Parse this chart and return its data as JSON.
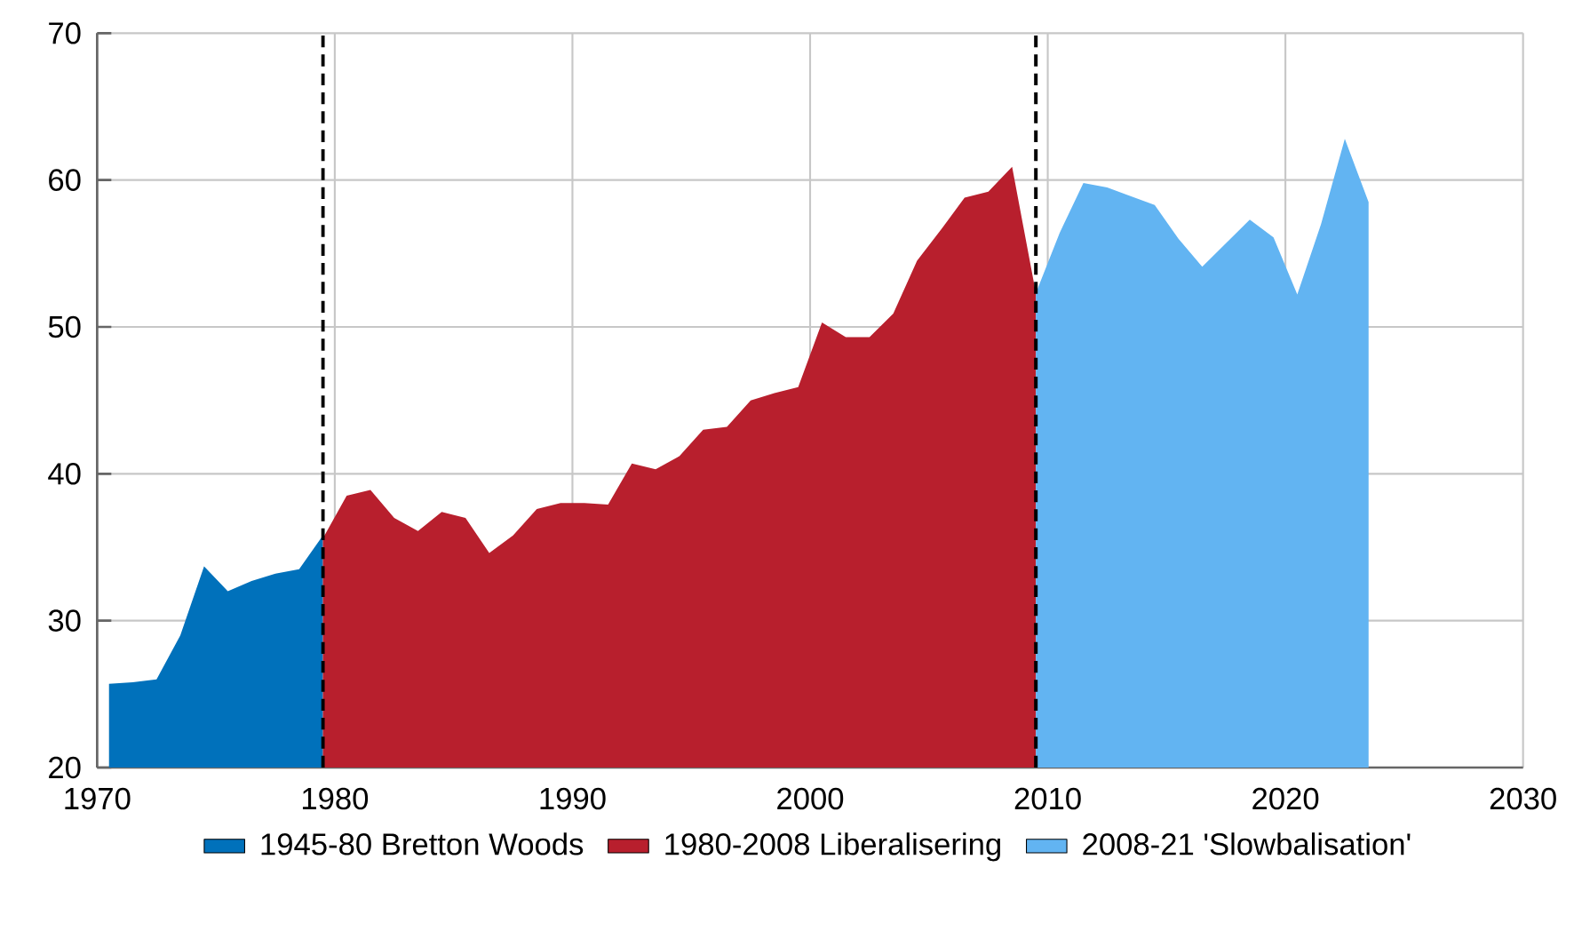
{
  "chart_data": {
    "type": "area",
    "xlim": [
      1970,
      2030
    ],
    "ylim": [
      20,
      70
    ],
    "xticks": [
      1970,
      1980,
      1990,
      2000,
      2010,
      2020,
      2030
    ],
    "yticks": [
      20,
      30,
      40,
      50,
      60,
      70
    ],
    "grid": true,
    "legend": "bottom",
    "series": [
      {
        "name": "1945-80 Bretton Woods",
        "color": "#0071bb",
        "x": [
          1970.5,
          1971.5,
          1972.5,
          1973.5,
          1974.5,
          1975.5,
          1976.5,
          1977.5,
          1978.5,
          1979.5
        ],
        "values": [
          25.7,
          25.8,
          26.0,
          29.0,
          33.7,
          32.0,
          32.7,
          33.2,
          33.5,
          35.8
        ]
      },
      {
        "name": "1980-2008 Liberalisering",
        "color": "#b81f2d",
        "x": [
          1979.5,
          1980.5,
          1981.5,
          1982.5,
          1983.5,
          1984.5,
          1985.5,
          1986.5,
          1987.5,
          1988.5,
          1989.5,
          1990.5,
          1991.5,
          1992.5,
          1993.5,
          1994.5,
          1995.5,
          1996.5,
          1997.5,
          1998.5,
          1999.5,
          2000.5,
          2001.5,
          2002.5,
          2003.5,
          2004.5,
          2005.5,
          2006.5,
          2007.5,
          2008.5,
          2009.5
        ],
        "values": [
          35.6,
          38.5,
          38.9,
          37.0,
          36.1,
          37.4,
          37.0,
          34.6,
          35.8,
          37.6,
          38.0,
          38.0,
          37.9,
          40.7,
          40.3,
          41.2,
          43.0,
          43.2,
          45.0,
          45.5,
          45.9,
          50.3,
          49.3,
          49.3,
          50.9,
          54.5,
          56.6,
          58.8,
          59.2,
          60.9,
          52.3
        ]
      },
      {
        "name": "2008-21 'Slowbalisation'",
        "color": "#62b4f2",
        "x": [
          2009.5,
          2010.5,
          2011.5,
          2012.5,
          2013.5,
          2014.5,
          2015.5,
          2016.5,
          2017.5,
          2018.5,
          2019.5,
          2020.5,
          2021.5,
          2022.5,
          2023.5
        ],
        "values": [
          52.3,
          56.4,
          59.8,
          59.5,
          58.9,
          58.3,
          56.0,
          54.1,
          55.7,
          57.3,
          56.1,
          52.2,
          57.0,
          62.8,
          58.5
        ]
      }
    ],
    "ref_lines": [
      {
        "axis": "x",
        "value": 1979.5,
        "color": "#000000",
        "line_style": "dashed"
      },
      {
        "axis": "x",
        "value": 2009.5,
        "color": "#000000",
        "line_style": "dashed"
      }
    ]
  }
}
